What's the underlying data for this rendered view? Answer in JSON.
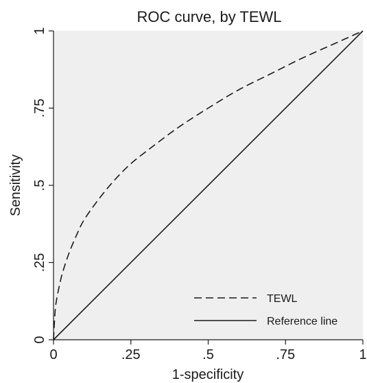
{
  "chart_data": {
    "type": "line",
    "title": "ROC curve, by TEWL",
    "xlabel": "1-specificity",
    "ylabel": "Sensitivity",
    "xlim": [
      0,
      1
    ],
    "ylim": [
      0,
      1
    ],
    "x_ticks": [
      0,
      0.25,
      0.5,
      0.75,
      1
    ],
    "x_tick_labels": [
      "0",
      ".25",
      ".5",
      ".75",
      "1"
    ],
    "y_ticks": [
      0,
      0.25,
      0.5,
      0.75,
      1
    ],
    "y_tick_labels": [
      "0",
      ".25",
      ".5",
      ".75",
      "1"
    ],
    "grid": false,
    "legend_position": "bottom-right",
    "series": [
      {
        "name": "TEWL",
        "style": "dashed",
        "x": [
          0,
          0.005,
          0.01,
          0.02,
          0.03,
          0.05,
          0.075,
          0.1,
          0.15,
          0.2,
          0.25,
          0.3,
          0.4,
          0.5,
          0.6,
          0.7,
          0.8,
          0.9,
          1.0
        ],
        "y": [
          0,
          0.09,
          0.13,
          0.18,
          0.22,
          0.28,
          0.34,
          0.39,
          0.46,
          0.52,
          0.57,
          0.61,
          0.685,
          0.75,
          0.81,
          0.86,
          0.91,
          0.955,
          1.0
        ]
      },
      {
        "name": "Reference line",
        "style": "solid",
        "x": [
          0,
          1
        ],
        "y": [
          0,
          1
        ]
      }
    ],
    "colors": {
      "plot_background": "#efefef",
      "line": "#1a1a1a"
    }
  }
}
